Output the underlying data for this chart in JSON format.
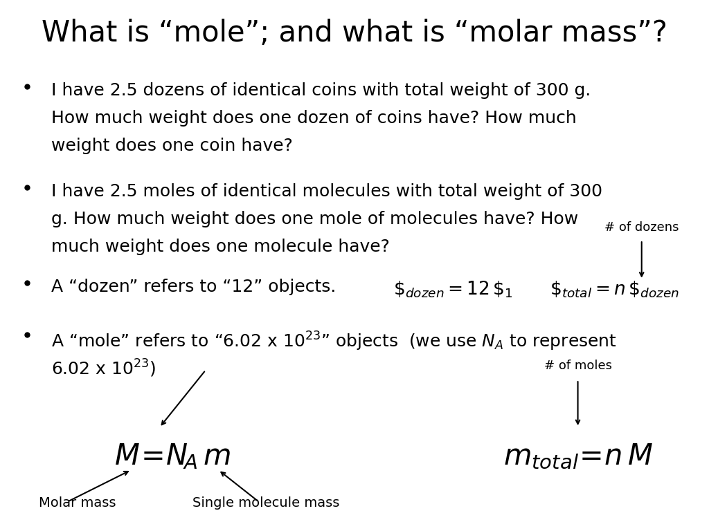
{
  "title": "What is “mole”; and what is “molar mass”?",
  "title_fontsize": 30,
  "bg_color": "#ffffff",
  "text_color": "#000000",
  "bullet1_line1": "I have 2.5 dozens of identical coins with total weight of 300 g.",
  "bullet1_line2": "How much weight does one dozen of coins have? How much",
  "bullet1_line3": "weight does one coin have?",
  "bullet2_line1": "I have 2.5 moles of identical molecules with total weight of 300",
  "bullet2_line2": "g. How much weight does one mole of molecules have? How",
  "bullet2_line3": "much weight does one molecule have?",
  "bullet3": "A “dozen” refers to “12” objects.",
  "bullet4_line1": "A “mole” refers to “6.02 x 10$^{23}$” objects  (we use $N_A$ to represent",
  "bullet4_line2": "6.02 x 10$^{23}$)",
  "label_molar_mass": "Molar mass",
  "label_single": "Single molecule mass",
  "label_num_dozens": "# of dozens",
  "label_num_moles": "# of moles"
}
